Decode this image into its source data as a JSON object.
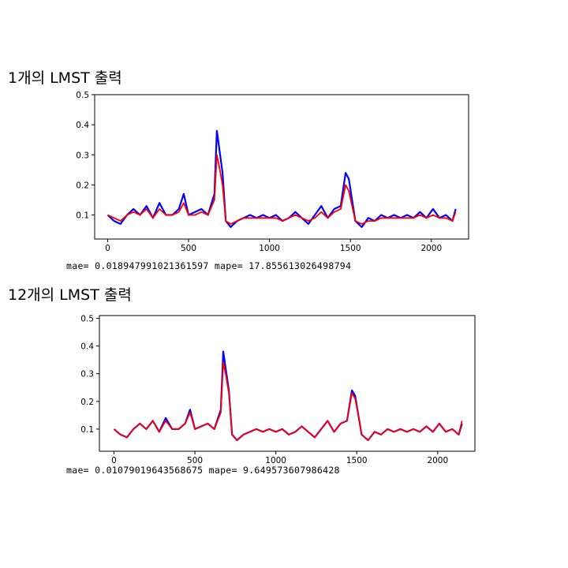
{
  "sections": [
    {
      "heading": "1개의 LMST 출력",
      "mae_label": "mae=",
      "mae_value": "0.018947991021361597",
      "mape_label": "mape=",
      "mape_value": "17.855613026498794"
    },
    {
      "heading": "12개의 LMST 출력",
      "mae_label": "mae=",
      "mae_value": "0.01079019643568675",
      "mape_label": "mape=",
      "mape_value": "9.649573607986428"
    }
  ],
  "colors": {
    "actual": "#0000ff",
    "predicted": "#ff0000"
  },
  "chart_data": [
    {
      "type": "line",
      "title": "",
      "xlabel": "",
      "ylabel": "",
      "xlim": [
        -80,
        2230
      ],
      "ylim": [
        0.02,
        0.5
      ],
      "xticks": [
        "0",
        "500",
        "1000",
        "1500",
        "2000"
      ],
      "yticks": [
        "0.1",
        "0.2",
        "0.3",
        "0.4",
        "0.5"
      ],
      "grid": false,
      "series": [
        {
          "color": "#0000ff",
          "x": [
            0,
            40,
            80,
            120,
            160,
            200,
            240,
            280,
            320,
            360,
            400,
            440,
            470,
            500,
            540,
            580,
            620,
            660,
            675,
            690,
            710,
            730,
            760,
            800,
            840,
            880,
            920,
            960,
            1000,
            1040,
            1080,
            1120,
            1160,
            1200,
            1240,
            1280,
            1320,
            1360,
            1400,
            1440,
            1470,
            1490,
            1510,
            1530,
            1570,
            1610,
            1650,
            1690,
            1730,
            1770,
            1810,
            1850,
            1890,
            1930,
            1970,
            2010,
            2050,
            2090,
            2130,
            2150
          ],
          "y": [
            0.1,
            0.08,
            0.07,
            0.1,
            0.12,
            0.1,
            0.13,
            0.09,
            0.14,
            0.1,
            0.1,
            0.12,
            0.17,
            0.1,
            0.11,
            0.12,
            0.1,
            0.17,
            0.38,
            0.32,
            0.24,
            0.08,
            0.06,
            0.08,
            0.09,
            0.1,
            0.09,
            0.1,
            0.09,
            0.1,
            0.08,
            0.09,
            0.11,
            0.09,
            0.07,
            0.1,
            0.13,
            0.09,
            0.12,
            0.13,
            0.24,
            0.22,
            0.15,
            0.08,
            0.06,
            0.09,
            0.08,
            0.1,
            0.09,
            0.1,
            0.09,
            0.1,
            0.09,
            0.11,
            0.09,
            0.12,
            0.09,
            0.1,
            0.08,
            0.12
          ]
        },
        {
          "color": "#ff0000",
          "x": [
            0,
            40,
            80,
            120,
            160,
            200,
            240,
            280,
            320,
            360,
            400,
            440,
            470,
            500,
            540,
            580,
            620,
            660,
            675,
            690,
            710,
            730,
            760,
            800,
            840,
            880,
            920,
            960,
            1000,
            1040,
            1080,
            1120,
            1160,
            1200,
            1240,
            1280,
            1320,
            1360,
            1400,
            1440,
            1470,
            1490,
            1510,
            1530,
            1570,
            1610,
            1650,
            1690,
            1730,
            1770,
            1810,
            1850,
            1890,
            1930,
            1970,
            2010,
            2050,
            2090,
            2130,
            2150
          ],
          "y": [
            0.1,
            0.09,
            0.08,
            0.1,
            0.11,
            0.1,
            0.12,
            0.09,
            0.12,
            0.1,
            0.1,
            0.11,
            0.14,
            0.1,
            0.1,
            0.11,
            0.1,
            0.15,
            0.3,
            0.26,
            0.2,
            0.08,
            0.07,
            0.08,
            0.09,
            0.09,
            0.09,
            0.09,
            0.09,
            0.09,
            0.08,
            0.09,
            0.1,
            0.09,
            0.08,
            0.09,
            0.11,
            0.09,
            0.11,
            0.12,
            0.2,
            0.18,
            0.13,
            0.08,
            0.07,
            0.08,
            0.08,
            0.09,
            0.09,
            0.09,
            0.09,
            0.09,
            0.09,
            0.1,
            0.09,
            0.1,
            0.09,
            0.09,
            0.08,
            0.11
          ]
        }
      ]
    },
    {
      "type": "line",
      "title": "",
      "xlabel": "",
      "ylabel": "",
      "xlim": [
        -90,
        2230
      ],
      "ylim": [
        0.02,
        0.51
      ],
      "xticks": [
        "0",
        "500",
        "1000",
        "1500",
        "2000"
      ],
      "yticks": [
        "0.1",
        "0.2",
        "0.3",
        "0.4",
        "0.5"
      ],
      "grid": false,
      "series": [
        {
          "color": "#0000ff",
          "x": [
            0,
            40,
            80,
            120,
            160,
            200,
            240,
            280,
            320,
            360,
            400,
            440,
            470,
            500,
            540,
            580,
            620,
            660,
            675,
            690,
            710,
            730,
            760,
            800,
            840,
            880,
            920,
            960,
            1000,
            1040,
            1080,
            1120,
            1160,
            1200,
            1240,
            1280,
            1320,
            1360,
            1400,
            1440,
            1470,
            1490,
            1510,
            1530,
            1570,
            1610,
            1650,
            1690,
            1730,
            1770,
            1810,
            1850,
            1890,
            1930,
            1970,
            2010,
            2050,
            2090,
            2130,
            2150
          ],
          "y": [
            0.1,
            0.08,
            0.07,
            0.1,
            0.12,
            0.1,
            0.13,
            0.09,
            0.14,
            0.1,
            0.1,
            0.12,
            0.17,
            0.1,
            0.11,
            0.12,
            0.1,
            0.17,
            0.38,
            0.32,
            0.24,
            0.08,
            0.06,
            0.08,
            0.09,
            0.1,
            0.09,
            0.1,
            0.09,
            0.1,
            0.08,
            0.09,
            0.11,
            0.09,
            0.07,
            0.1,
            0.13,
            0.09,
            0.12,
            0.13,
            0.24,
            0.22,
            0.15,
            0.08,
            0.06,
            0.09,
            0.08,
            0.1,
            0.09,
            0.1,
            0.09,
            0.1,
            0.09,
            0.11,
            0.09,
            0.12,
            0.09,
            0.1,
            0.08,
            0.12
          ]
        },
        {
          "color": "#ff0000",
          "x": [
            0,
            40,
            80,
            120,
            160,
            200,
            240,
            280,
            320,
            360,
            400,
            440,
            470,
            500,
            540,
            580,
            620,
            660,
            675,
            690,
            710,
            730,
            760,
            800,
            840,
            880,
            920,
            960,
            1000,
            1040,
            1080,
            1120,
            1160,
            1200,
            1240,
            1280,
            1320,
            1360,
            1400,
            1440,
            1470,
            1490,
            1510,
            1530,
            1570,
            1610,
            1650,
            1690,
            1730,
            1770,
            1810,
            1850,
            1890,
            1930,
            1970,
            2010,
            2050,
            2090,
            2130,
            2150
          ],
          "y": [
            0.1,
            0.08,
            0.07,
            0.1,
            0.12,
            0.1,
            0.13,
            0.09,
            0.13,
            0.1,
            0.1,
            0.12,
            0.16,
            0.1,
            0.11,
            0.12,
            0.1,
            0.16,
            0.34,
            0.3,
            0.23,
            0.08,
            0.06,
            0.08,
            0.09,
            0.1,
            0.09,
            0.1,
            0.09,
            0.1,
            0.08,
            0.09,
            0.11,
            0.09,
            0.07,
            0.1,
            0.13,
            0.09,
            0.12,
            0.13,
            0.23,
            0.21,
            0.15,
            0.08,
            0.06,
            0.09,
            0.08,
            0.1,
            0.09,
            0.1,
            0.09,
            0.1,
            0.09,
            0.11,
            0.09,
            0.12,
            0.09,
            0.1,
            0.08,
            0.13
          ]
        }
      ]
    }
  ]
}
